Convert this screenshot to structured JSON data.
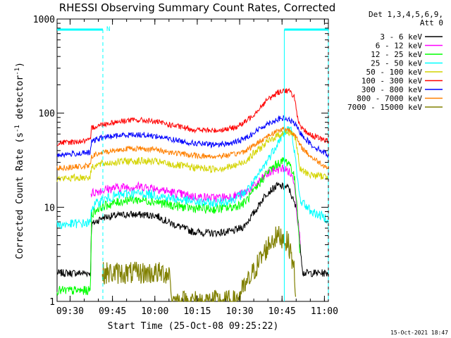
{
  "chart_data": {
    "type": "line",
    "title": "RHESSI Observing Summary Count Rates, Corrected",
    "ylabel_main": "Corrected Count Rate (s",
    "ylabel_sup1": "-1",
    "ylabel_mid": " detector",
    "ylabel_sup2": "-1",
    "ylabel_end": ")",
    "xlabel": "Start Time (25-Oct-08 09:25:22)",
    "y_scale": "log",
    "ylim": [
      1,
      1000
    ],
    "xlim_minutes": [
      0,
      96
    ],
    "x_start": "09:25:22",
    "x_ticks": [
      {
        "label": "09:30",
        "min": 4.6
      },
      {
        "label": "09:45",
        "min": 19.6
      },
      {
        "label": "10:00",
        "min": 34.6
      },
      {
        "label": "10:15",
        "min": 49.6
      },
      {
        "label": "10:30",
        "min": 64.6
      },
      {
        "label": "10:45",
        "min": 79.6
      },
      {
        "label": "11:00",
        "min": 94.6
      }
    ],
    "y_ticks": [
      {
        "label": "1",
        "value": 1
      },
      {
        "label": "10",
        "value": 10
      },
      {
        "label": "100",
        "value": 100
      },
      {
        "label": "1000",
        "value": 1000
      }
    ],
    "legend_header_1": "Det 1,3,4,5,6,9,",
    "legend_header_2": "Att 0",
    "legend_position": "right",
    "series": [
      {
        "name": "3 - 6 keV",
        "color": "#000000",
        "x": [
          0,
          11.9,
          12.1,
          16,
          25,
          35,
          40,
          48,
          55,
          62,
          66,
          70,
          74,
          78,
          82,
          85,
          86,
          87,
          89,
          92,
          96
        ],
        "y": [
          2,
          2,
          6.5,
          7.8,
          8.4,
          8.2,
          6.8,
          5.5,
          5.3,
          5.5,
          6.2,
          9,
          14,
          17,
          16,
          9,
          4,
          2,
          2,
          2,
          2
        ]
      },
      {
        "name": "6 - 12 keV",
        "color": "#ff00ff",
        "x": [
          12,
          15,
          20,
          25,
          30,
          35,
          40,
          48,
          55,
          62,
          66,
          70,
          74,
          77,
          80,
          82,
          84,
          85,
          86
        ],
        "y": [
          14,
          15,
          16,
          16.5,
          16.5,
          16,
          14.5,
          13,
          12.5,
          13,
          14,
          17,
          22,
          25,
          26,
          24,
          19,
          8,
          4.5
        ]
      },
      {
        "name": "12 - 25 keV",
        "color": "#00ff00",
        "x": [
          0,
          11.8,
          12.2,
          15,
          20,
          25,
          30,
          35,
          40,
          48,
          55,
          62,
          66,
          70,
          74,
          78,
          80,
          82,
          83,
          84,
          85,
          86
        ],
        "y": [
          1.3,
          1.3,
          8.5,
          10,
          11,
          12,
          12,
          11.5,
          10.5,
          9.8,
          9.5,
          10,
          11,
          15,
          23,
          29,
          31,
          30,
          26,
          20,
          10,
          3
        ]
      },
      {
        "name": "25 - 50 keV",
        "color": "#00ffff",
        "x": [
          0,
          11.8,
          12.2,
          16,
          20,
          25,
          30,
          35,
          40,
          48,
          55,
          62,
          66,
          70,
          74,
          78,
          80,
          82,
          83,
          84,
          85,
          86,
          90,
          96
        ],
        "y": [
          6.5,
          6.8,
          10,
          12,
          13,
          14,
          14,
          13.5,
          12.5,
          11.5,
          11,
          12,
          14,
          19,
          30,
          48,
          60,
          68,
          65,
          40,
          20,
          12,
          9,
          7.5
        ]
      },
      {
        "name": "50 - 100 keV",
        "color": "#d4d400",
        "x": [
          0,
          11.8,
          12.2,
          16,
          20,
          25,
          30,
          35,
          40,
          48,
          55,
          62,
          66,
          70,
          74,
          78,
          80,
          82,
          84,
          85,
          86,
          90,
          96
        ],
        "y": [
          20,
          21,
          27,
          29,
          30,
          31,
          31,
          30.5,
          28.5,
          26.5,
          25.5,
          27,
          30,
          38,
          48,
          58,
          62,
          63,
          60,
          40,
          25,
          22,
          21
        ]
      },
      {
        "name": "100 - 300 keV",
        "color": "#ff0000",
        "x": [
          0,
          11.8,
          12.2,
          16,
          20,
          25,
          30,
          35,
          40,
          48,
          55,
          62,
          66,
          70,
          74,
          78,
          80,
          82,
          84,
          85,
          86,
          90,
          96
        ],
        "y": [
          48,
          51,
          70,
          76,
          80,
          84,
          84,
          81,
          75,
          67,
          65,
          69,
          78,
          100,
          135,
          165,
          175,
          172,
          150,
          90,
          70,
          58,
          50
        ]
      },
      {
        "name": "300 - 800 keV",
        "color": "#0000ff",
        "x": [
          0,
          11.8,
          12.2,
          16,
          20,
          25,
          30,
          35,
          40,
          48,
          55,
          62,
          66,
          70,
          74,
          78,
          80,
          82,
          84,
          86,
          90,
          96
        ],
        "y": [
          36,
          38,
          50,
          55,
          57,
          59,
          59,
          57,
          53,
          48,
          46,
          48,
          53,
          63,
          76,
          86,
          88,
          85,
          78,
          62,
          46,
          36
        ]
      },
      {
        "name": "800 - 7000 keV",
        "color": "#ff8000",
        "x": [
          0,
          11.8,
          12.2,
          16,
          20,
          25,
          30,
          35,
          40,
          48,
          55,
          62,
          66,
          70,
          74,
          78,
          80,
          82,
          84,
          86,
          90,
          96
        ],
        "y": [
          26,
          27.5,
          35,
          38,
          40,
          42,
          42,
          41,
          38.5,
          35.5,
          34.5,
          36,
          39,
          46,
          56,
          65,
          68,
          67,
          60,
          45,
          34,
          26
        ]
      },
      {
        "name": "7000 - 15000 keV",
        "color": "#808000",
        "x": [
          16,
          20,
          25,
          30,
          35,
          40,
          40.5,
          63,
          67,
          70,
          72,
          74,
          76,
          78,
          80,
          82,
          83,
          84,
          84.5
        ],
        "y": [
          2,
          2,
          2,
          2,
          2,
          2,
          1,
          1,
          1.5,
          2.2,
          2.8,
          3.6,
          4.5,
          4.9,
          4.8,
          4,
          3,
          2,
          1
        ]
      }
    ],
    "attenuator_segments": [
      {
        "x0": 0,
        "x1": 16.2,
        "label": "N"
      },
      {
        "x0": 80.4,
        "x1": 96,
        "label": ""
      }
    ],
    "vertical_markers_min": [
      16.2,
      80.4,
      96
    ],
    "grid": false,
    "footer": "15-Oct-2021 18:47"
  }
}
